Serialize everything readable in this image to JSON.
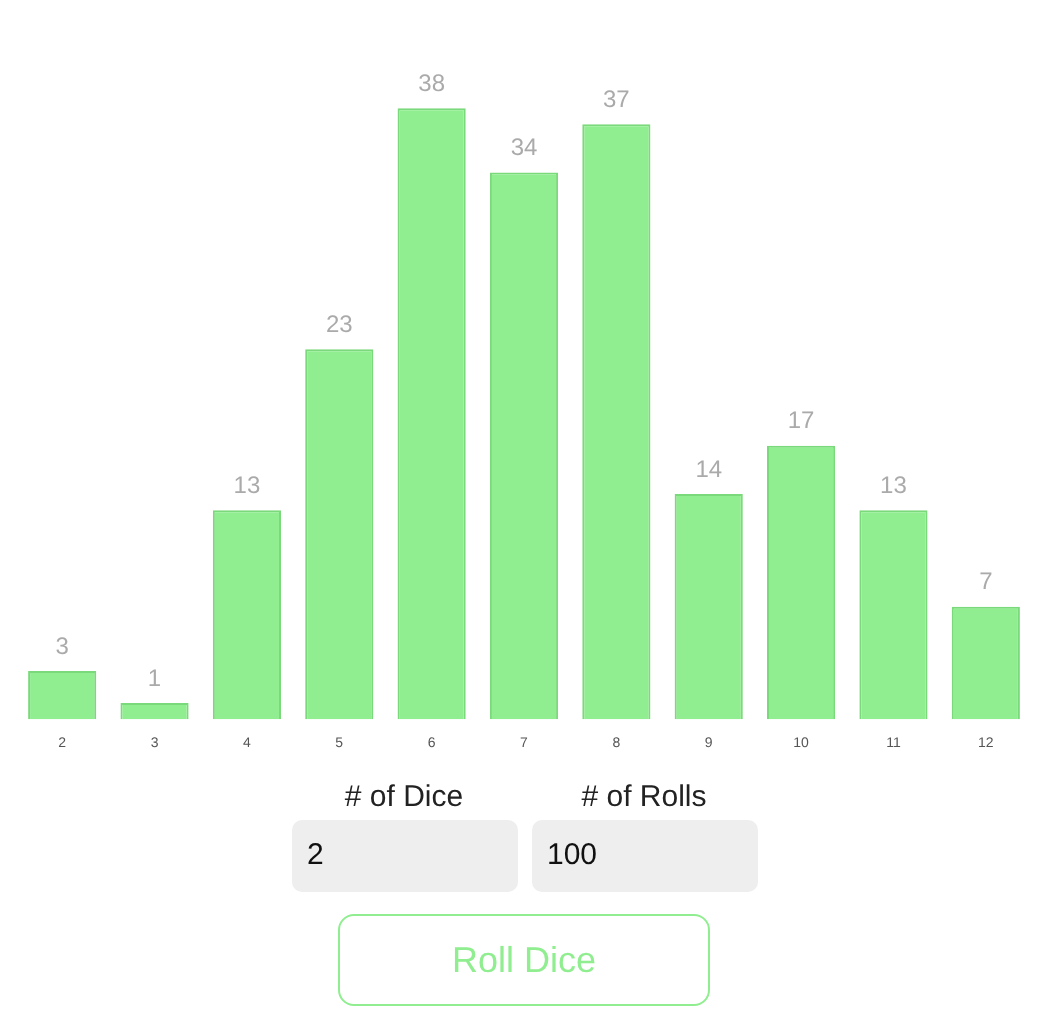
{
  "chart_data": {
    "type": "bar",
    "categories": [
      "2",
      "3",
      "4",
      "5",
      "6",
      "7",
      "8",
      "9",
      "10",
      "11",
      "12"
    ],
    "values": [
      3,
      1,
      13,
      23,
      38,
      34,
      37,
      14,
      17,
      13,
      7
    ],
    "color": "#90ee90",
    "data_labels": true,
    "grid": false,
    "legend": false,
    "tick_labels": "x",
    "annotations": [
      "# of Dice",
      "# of Rolls",
      "2",
      "100",
      "Roll Dice"
    ]
  }
}
